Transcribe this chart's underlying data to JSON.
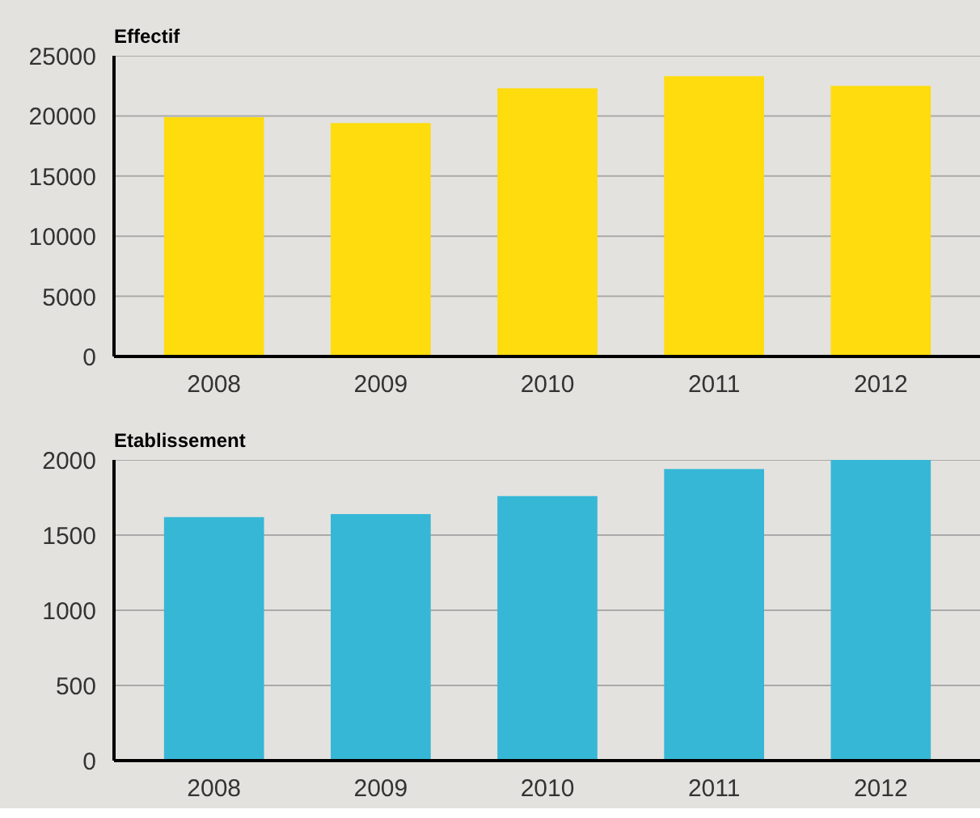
{
  "chart_data": [
    {
      "type": "bar",
      "title": "Effectif",
      "categories": [
        "2008",
        "2009",
        "2010",
        "2011",
        "2012"
      ],
      "values": [
        19900,
        19400,
        22300,
        23300,
        22500
      ],
      "color": "#fedc0e",
      "ylim": [
        0,
        25000
      ],
      "yticks": [
        0,
        5000,
        10000,
        15000,
        20000,
        25000
      ],
      "grid": "y"
    },
    {
      "type": "bar",
      "title": "Etablissement",
      "categories": [
        "2008",
        "2009",
        "2010",
        "2011",
        "2012"
      ],
      "values": [
        1620,
        1640,
        1760,
        1940,
        2000
      ],
      "color": "#37b7d6",
      "ylim": [
        0,
        2000
      ],
      "yticks": [
        0,
        500,
        1000,
        1500,
        2000
      ],
      "grid": "y"
    }
  ]
}
